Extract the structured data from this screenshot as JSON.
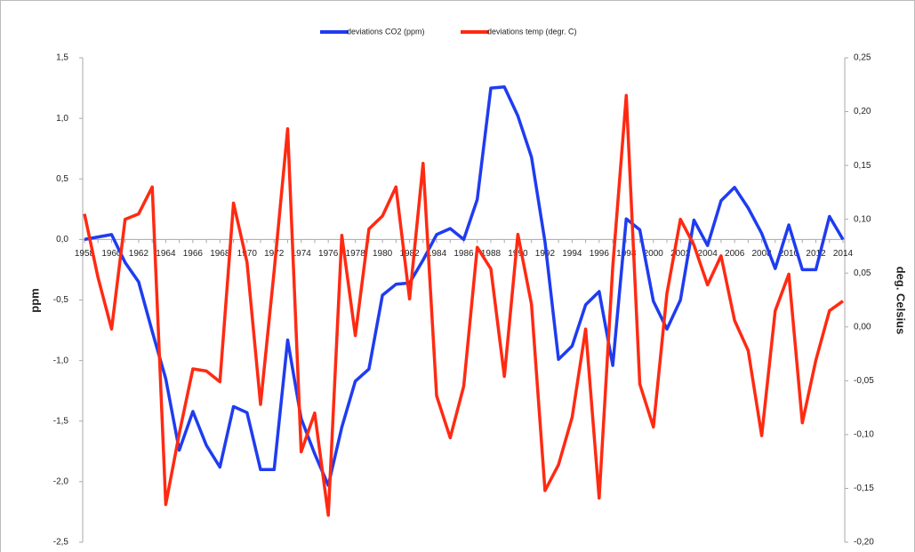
{
  "chart_data": {
    "type": "line",
    "categories": [
      "1958",
      null,
      "1960",
      null,
      "1962",
      null,
      "1964",
      null,
      "1966",
      null,
      "1968",
      null,
      "1970",
      null,
      "1972",
      null,
      "1974",
      null,
      "1976",
      null,
      "1978",
      null,
      "1980",
      null,
      "1982",
      null,
      "1984",
      null,
      "1986",
      null,
      "1988",
      null,
      "1990",
      null,
      "1992",
      null,
      "1994",
      null,
      "1996",
      null,
      "1998",
      null,
      "2000",
      null,
      "2002",
      null,
      "2004",
      null,
      "2006",
      null,
      "2008",
      null,
      "2010",
      null,
      "2012",
      null,
      "2014"
    ],
    "series": [
      {
        "name": "deviations CO2 (ppm)",
        "color": "#1f3cf0",
        "values": [
          0.0,
          0.02,
          0.04,
          -0.19,
          -0.35,
          -0.76,
          -1.15,
          -1.74,
          -1.42,
          -1.7,
          -1.88,
          -1.38,
          -1.43,
          -1.9,
          -1.9,
          -0.83,
          -1.48,
          -1.77,
          -2.03,
          -1.55,
          -1.17,
          -1.07,
          -0.46,
          -0.37,
          -0.36,
          -0.17,
          0.04,
          0.09,
          0.0,
          0.33,
          1.25,
          1.26,
          1.02,
          0.68,
          -0.02,
          -0.99,
          -0.88,
          -0.54,
          -0.43,
          -1.04,
          0.17,
          0.08,
          -0.51,
          -0.74,
          -0.5,
          0.16,
          -0.05,
          0.32,
          0.43,
          0.26,
          0.05,
          -0.24,
          0.12,
          -0.25,
          -0.25,
          0.19,
          0.0
        ]
      },
      {
        "name": "deviations temp (degr. C)",
        "color": "#ff2a12",
        "axis": "y2",
        "values": [
          0.105,
          0.046,
          -0.002,
          0.1,
          0.105,
          0.13,
          -0.165,
          -0.099,
          -0.039,
          -0.041,
          -0.051,
          0.115,
          0.06,
          -0.072,
          0.052,
          0.184,
          -0.116,
          -0.08,
          -0.175,
          0.085,
          -0.008,
          0.091,
          0.103,
          0.13,
          0.026,
          0.152,
          -0.064,
          -0.103,
          -0.055,
          0.074,
          0.054,
          -0.046,
          0.086,
          0.021,
          -0.152,
          -0.128,
          -0.084,
          -0.002,
          -0.159,
          0.056,
          0.215,
          -0.053,
          -0.093,
          0.031,
          0.1,
          0.076,
          0.039,
          0.066,
          0.006,
          -0.022,
          -0.101,
          0.015,
          0.049,
          -0.089,
          -0.031,
          0.015,
          0.024
        ]
      }
    ],
    "y_label": "ppm",
    "y2_label": "deg. Celsius",
    "ylim": [
      -2.5,
      1.5
    ],
    "yticks": [
      {
        "value": -2.5,
        "label": "-2,5"
      },
      {
        "value": -2,
        "label": "-2,0"
      },
      {
        "value": -1.5,
        "label": "-1,5"
      },
      {
        "value": -1,
        "label": "-1,0"
      },
      {
        "value": -0.5,
        "label": "-0,5"
      },
      {
        "value": 0,
        "label": "0,0"
      },
      {
        "value": 0.5,
        "label": "0,5"
      },
      {
        "value": 1,
        "label": "1,0"
      },
      {
        "value": 1.5,
        "label": "1,5"
      }
    ],
    "y2lim": [
      -0.2,
      0.25
    ],
    "y2ticks": [
      {
        "value": -0.2,
        "label": "-0,20"
      },
      {
        "value": -0.15,
        "label": "-0,15"
      },
      {
        "value": -0.1,
        "label": "-0,10"
      },
      {
        "value": -0.05,
        "label": "-0,05"
      },
      {
        "value": 0,
        "label": "0,00"
      },
      {
        "value": 0.05,
        "label": "0,05"
      },
      {
        "value": 0.1,
        "label": "0,10"
      },
      {
        "value": 0.15,
        "label": "0,15"
      },
      {
        "value": 0.2,
        "label": "0,20"
      },
      {
        "value": 0.25,
        "label": "0,25"
      }
    ],
    "legend": "top"
  }
}
